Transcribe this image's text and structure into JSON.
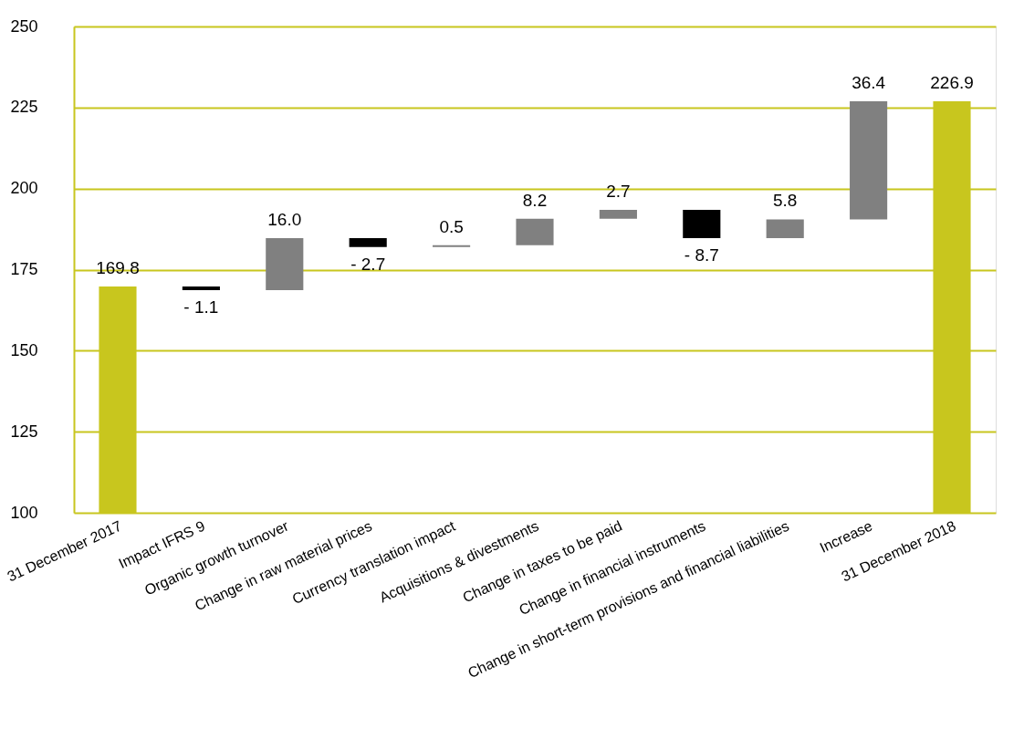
{
  "chart_data": {
    "type": "bar",
    "categories": [
      "31 December 2017",
      "Impact IFRS 9",
      "Organic growth turnover",
      "Change in raw material prices",
      "Currency translation impact",
      "Acquisitions & divestments",
      "Change in taxes to be paid",
      "Change in financial instruments",
      "Change in short-term provisions and financial liabilities",
      "Increase",
      "31 December 2018"
    ],
    "values": [
      169.8,
      -1.1,
      16.0,
      -2.7,
      0.5,
      8.2,
      2.7,
      -8.7,
      5.8,
      36.4,
      226.9
    ],
    "base": [
      null,
      169.8,
      168.7,
      184.7,
      182.0,
      182.5,
      190.7,
      193.4,
      184.7,
      190.5,
      null
    ],
    "colors": [
      "#c8c61e",
      "#000000",
      "#808080",
      "#000000",
      "#808080",
      "#808080",
      "#808080",
      "#000000",
      "#808080",
      "#808080",
      "#c8c61e"
    ],
    "value_labels": [
      "169.8",
      "- 1.1",
      "16.0",
      "- 2.7",
      "0.5",
      "8.2",
      "2.7",
      "- 8.7",
      "5.8",
      "36.4",
      "226.9"
    ],
    "ylim": [
      100,
      250
    ],
    "yticks": [
      100,
      125,
      150,
      175,
      200,
      225,
      250
    ],
    "grid": "y"
  }
}
